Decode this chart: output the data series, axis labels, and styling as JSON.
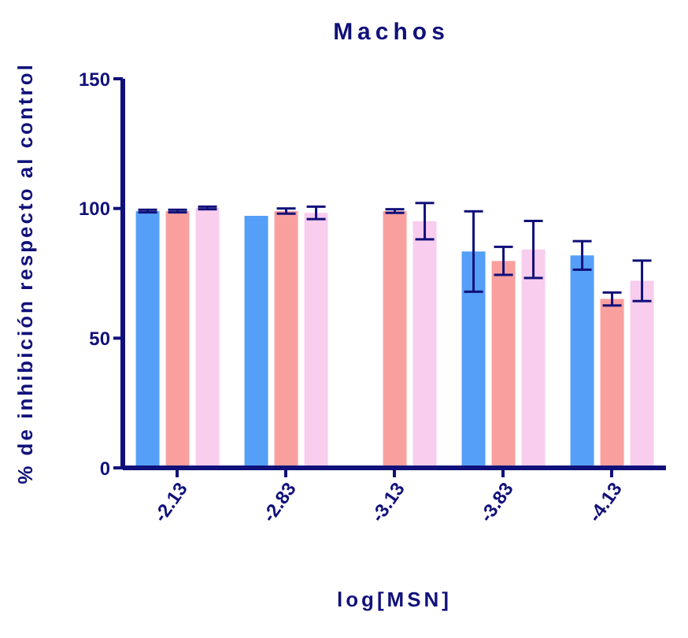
{
  "chart_data": {
    "type": "bar",
    "title": "Machos",
    "xlabel": "log[MSN]",
    "ylabel": "% de inhibición respecto al control",
    "categories": [
      "-2.13",
      "-2.83",
      "-3.13",
      "-3.83",
      "-4.13"
    ],
    "series": [
      {
        "color": "#559ff8",
        "values": [
          99,
          97.2,
          null,
          83.4,
          81.9
        ],
        "errors": [
          0.5,
          null,
          null,
          15.5,
          5.5
        ]
      },
      {
        "color": "#f9a09f",
        "values": [
          99,
          99,
          99,
          79.8,
          65.1
        ],
        "errors": [
          0.5,
          1,
          0.7,
          5.4,
          2.5
        ]
      },
      {
        "color": "#f8cdee",
        "values": [
          100.2,
          98.3,
          95.1,
          84.2,
          72.1
        ],
        "errors": [
          0.5,
          2.4,
          7,
          11,
          7.8
        ]
      }
    ],
    "ylim": [
      0,
      150
    ],
    "yticks": [
      0,
      50,
      100,
      150
    ],
    "grid": false,
    "legend": false
  }
}
